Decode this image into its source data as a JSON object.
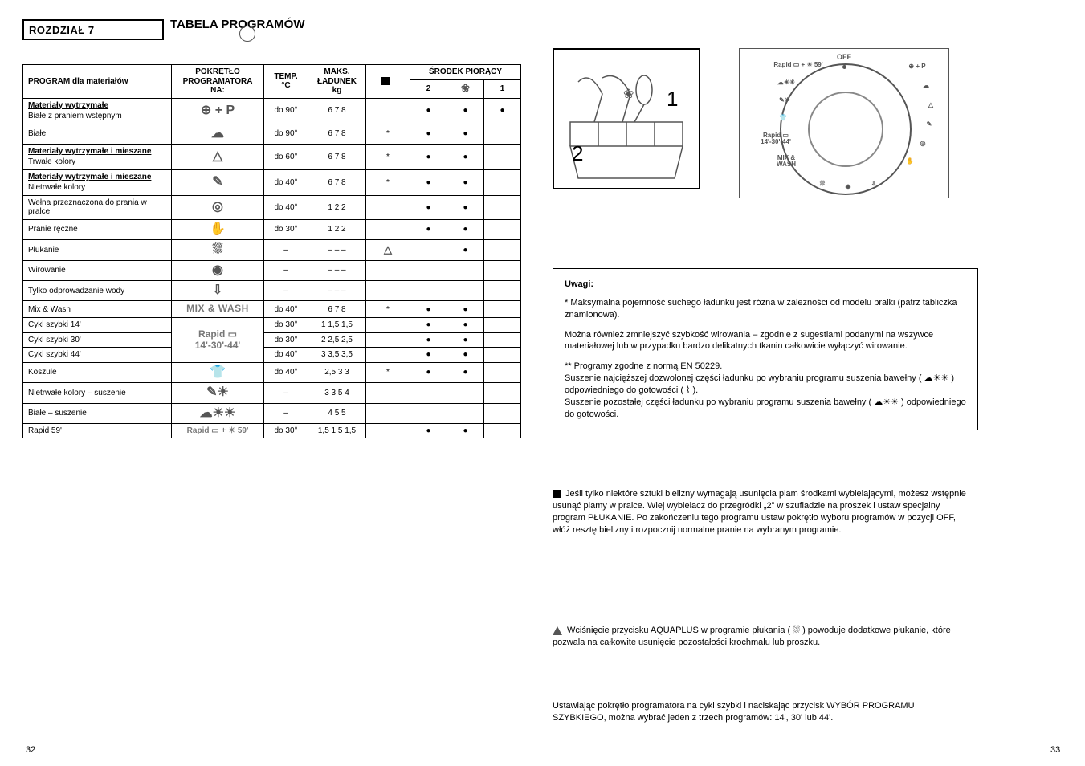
{
  "chapter": {
    "number": "ROZDZIAŁ 7",
    "title": "TABELA PROGRAMÓW",
    "note_ref": ""
  },
  "page_number": "32",
  "table": {
    "head": {
      "c1": "PROGRAM dla materiałów",
      "c2": "POKRĘTŁO\nPROGRAMATORA NA:",
      "c3": "TEMP.\n°C",
      "c4": "MAKS.\nŁADUNEK\nkg",
      "c5": "■",
      "c6": "ŚRODEK PIORĄCY",
      "c6a": "2",
      "c6b": "❀",
      "c6c": "1"
    },
    "rows": [
      {
        "sec": "Materiały wytrzymałe",
        "label": "Białe z praniem wstępnym",
        "icon": "⊕ + P",
        "temp": "do 90°",
        "load": "6  7  8",
        "c5": "",
        "d2": "●",
        "dsoft": "●",
        "d1": "●"
      },
      {
        "label": "Białe",
        "icon": "☁",
        "temp": "do 90°",
        "load": "6  7  8",
        "c5": "*",
        "d2": "●",
        "dsoft": "●",
        "d1": ""
      },
      {
        "sec": "Materiały wytrzymałe i mieszane",
        "label": "Trwałe kolory",
        "icon": "△",
        "temp": "do 60°",
        "load": "6  7  8",
        "c5": "*",
        "d2": "●",
        "dsoft": "●",
        "d1": ""
      },
      {
        "sec": "Materiały wytrzymałe i mieszane",
        "label": "Nietrwałe kolory",
        "icon": "✎",
        "temp": "do 40°",
        "load": "6  7  8",
        "c5": "*",
        "d2": "●",
        "dsoft": "●",
        "d1": ""
      },
      {
        "label": "Wełna przeznaczona do prania w pralce",
        "icon": "◎",
        "temp": "do 40°",
        "load": "1  2  2",
        "c5": "",
        "d2": "●",
        "dsoft": "●",
        "d1": ""
      },
      {
        "label": "Pranie ręczne",
        "icon": "✋",
        "temp": "do 30°",
        "load": "1  2  2",
        "c5": "",
        "d2": "●",
        "dsoft": "●",
        "d1": ""
      },
      {
        "label": "Płukanie",
        "icon": "⛆",
        "temp": "–",
        "load": "–  –  –",
        "c5": "△",
        "d2": "",
        "dsoft": "●",
        "d1": ""
      },
      {
        "label": "Wirowanie",
        "icon": "◉",
        "temp": "–",
        "load": "–  –  –",
        "c5": "",
        "d2": "",
        "dsoft": "",
        "d1": ""
      },
      {
        "label": "Tylko odprowadzanie wody",
        "icon": "⇩",
        "temp": "–",
        "load": "–  –  –",
        "c5": "",
        "d2": "",
        "dsoft": "",
        "d1": ""
      },
      {
        "label": "Mix & Wash",
        "icon_html": "<span class='mixwash'>MIX & WASH</span>",
        "temp": "do 40°",
        "load": "6  7  8",
        "c5": "*",
        "d2": "●",
        "dsoft": "●",
        "d1": ""
      },
      {
        "label": "Cykl szybki 14'",
        "icon_html": "<span class='rapid'>Rapid ▭<br>14'-30'-44'</span>",
        "temp": "do 30°",
        "load": "1  1,5  1,5",
        "c5": "",
        "d2": "●",
        "dsoft": "●",
        "d1": "",
        "rowspan_icon": 3
      },
      {
        "label": "Cykl szybki 30'",
        "temp": "do 30°",
        "load": "2  2,5  2,5",
        "c5": "",
        "d2": "●",
        "dsoft": "●",
        "d1": ""
      },
      {
        "label": "Cykl szybki 44'",
        "temp": "do 40°",
        "load": "3  3,5  3,5",
        "c5": "",
        "d2": "●",
        "dsoft": "●",
        "d1": ""
      },
      {
        "label": "Koszule",
        "icon": "👕",
        "temp": "do 40°",
        "load": "2,5  3  3",
        "c5": "*",
        "d2": "●",
        "dsoft": "●",
        "d1": ""
      },
      {
        "label": "Nietrwałe kolory – suszenie",
        "icon": "✎☀",
        "temp": "–",
        "load": "3  3,5  4",
        "c5": "",
        "d2": "",
        "dsoft": "",
        "d1": ""
      },
      {
        "label": "Białe – suszenie",
        "icon": "☁☀☀",
        "temp": "–",
        "load": "4  5  5",
        "c5": "",
        "d2": "",
        "dsoft": "",
        "d1": ""
      },
      {
        "label": "Rapid 59'",
        "icon_html": "<span class='rapid' style='font-size:10px'>Rapid ▭ + ☀ 59'</span>",
        "temp": "do 30°",
        "load": "1,5  1,5  1,5",
        "c5": "",
        "d2": "●",
        "dsoft": "●",
        "d1": ""
      }
    ]
  },
  "dial": {
    "off": "OFF",
    "labels": {
      "top_left": "Rapid ▭ + ☀ 59'",
      "left1": "☁☀☀",
      "left2": "✎☀",
      "left3": "👕",
      "left4": "Rapid ▭\n14'-30'-44'",
      "left5": "MIX &\nWASH",
      "right1": "⊕ + P",
      "right2": "☁",
      "right3": "△",
      "right4": "✎",
      "right5": "◎",
      "right6": "✋",
      "bottom1": "⛆",
      "bottom2": "◉",
      "bottom3": "⇩"
    }
  },
  "notes": {
    "box": {
      "title": "Uwagi:",
      "l1": "* Maksymalna pojemność suchego ładunku jest różna w zależności od modelu pralki (patrz tabliczka znamionowa).",
      "l2": "Można również zmniejszyć szybkość wirowania – zgodnie z sugestiami podanymi na wszywce materiałowej lub w przypadku bardzo delikatnych tkanin całkowicie wyłączyć wirowanie.",
      "l3a": "** Programy zgodne z normą EN 50229.",
      "l3b": "Suszenie najcięższej dozwolonej części ładunku po wybraniu programu suszenia bawełny ( ☁☀☀ ) odpowiedniego do gotowości ( ⌇ ).",
      "l3c": "Suszenie pozostałej części ładunku po wybraniu programu suszenia bawełny ( ☁☀☀ ) odpowiedniego do gotowości."
    },
    "p1": {
      "lead": "■",
      "text": "Jeśli tylko niektóre sztuki bielizny wymagają usunięcia plam środkami wybielającymi, możesz wstępnie usunąć plamy w pralce. Wlej wybielacz do przegródki „2” w szufladzie na proszek i ustaw specjalny program PŁUKANIE. Po zakończeniu tego programu ustaw pokrętło wyboru programów w pozycji OFF, włóż resztę bielizny i rozpocznij normalne pranie na wybranym programie."
    },
    "p2": {
      "lead": "△",
      "text": "Wciśnięcie przycisku AQUAPLUS w programie płukania ( ⛆ ) powoduje dodatkowe płukanie, które pozwala na całkowite usunięcie pozostałości krochmalu lub proszku."
    },
    "p3": "Ustawiając pokrętło programatora na cykl szybki i naciskając przycisk WYBÓR PROGRAMU SZYBKIEGO, można wybrać jeden z trzech programów: 14', 30' lub 44'."
  },
  "page_right": "33"
}
